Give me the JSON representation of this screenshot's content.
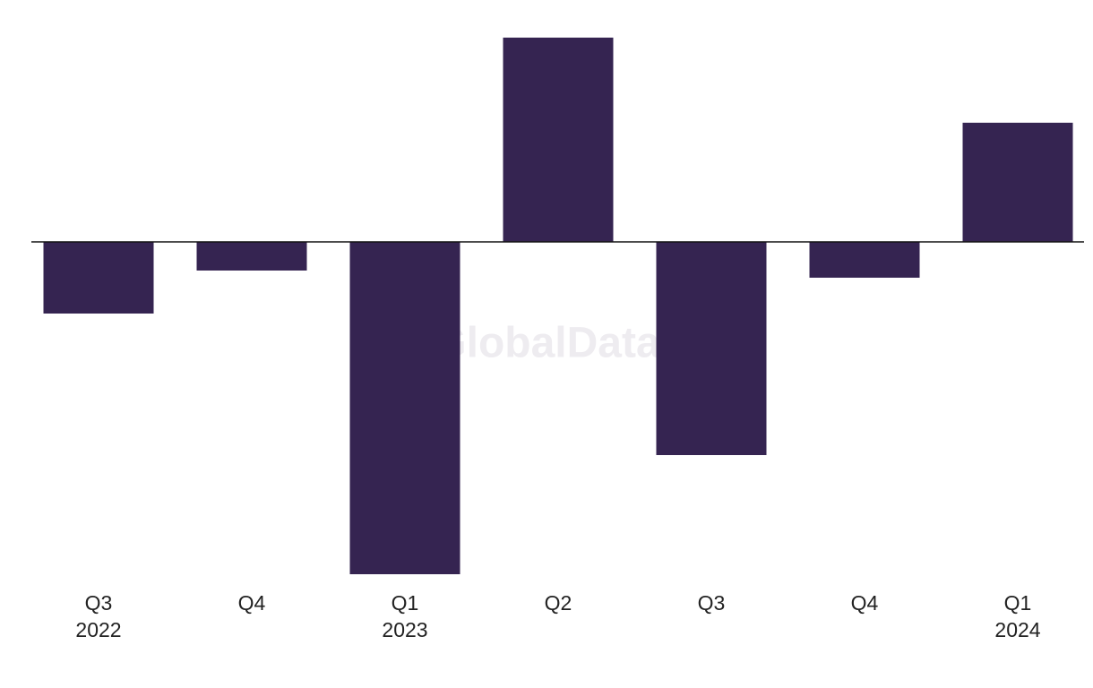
{
  "chart_data": {
    "type": "bar",
    "categories": [
      "Q3\n2022",
      "Q4",
      "Q1\n2023",
      "Q2",
      "Q3",
      "Q4",
      "Q1\n2024"
    ],
    "values": [
      -8.0,
      -3.2,
      -37.1,
      22.8,
      -23.8,
      -4.0,
      13.3
    ],
    "color": "#352451",
    "ylim": [
      -37.1,
      22.8
    ],
    "watermark": "GlobalData"
  }
}
